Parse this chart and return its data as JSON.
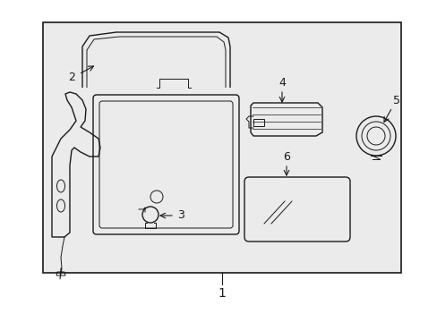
{
  "background_color": "#ffffff",
  "box_bg": "#ebebeb",
  "line_color": "#1a1a1a",
  "label1": "1",
  "label2": "2",
  "label3": "3",
  "label4": "4",
  "label5": "5",
  "label6": "6"
}
